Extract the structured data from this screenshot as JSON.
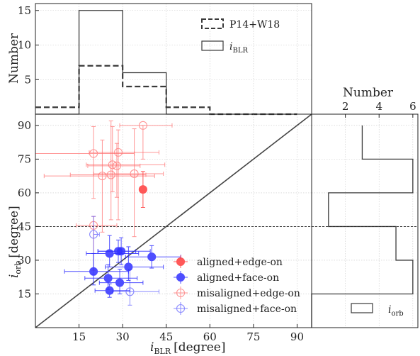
{
  "chart_data": [
    {
      "panel": "top",
      "type": "histogram",
      "ylabel": "Number",
      "yticks": [
        5,
        10,
        15
      ],
      "ylim": [
        0,
        16
      ],
      "xlim": [
        0,
        95
      ],
      "bin_edges": [
        0,
        15,
        30,
        45,
        60,
        75,
        90
      ],
      "grid": true,
      "legend_position": "top-right",
      "series": [
        {
          "name": "P14+W18",
          "style": "dashed",
          "color": "#3a3a3a",
          "counts": [
            1,
            7,
            4,
            1,
            0,
            0
          ]
        },
        {
          "name": "i_BLR",
          "style": "solid",
          "color": "#3a3a3a",
          "counts": [
            0,
            15,
            6,
            0,
            0,
            0
          ]
        }
      ],
      "legend_labels": {
        "p14": "P14+W18",
        "iblr_main": "i",
        "iblr_sub": "BLR"
      }
    },
    {
      "panel": "main",
      "type": "scatter",
      "xlabel_main": "i",
      "xlabel_sub": "BLR",
      "xlabel_unit": "[degree]",
      "ylabel_main": "i",
      "ylabel_sub": "orb",
      "ylabel_unit": "[degree]",
      "xticks": [
        15,
        30,
        45,
        60,
        75,
        90
      ],
      "yticks": [
        15,
        30,
        45,
        60,
        75,
        90
      ],
      "xlim": [
        0,
        95
      ],
      "ylim": [
        0,
        95
      ],
      "grid": true,
      "one_to_one_line": true,
      "horizontal_reference": 45,
      "legend_position": "lower-right",
      "series": [
        {
          "name": "aligned+edge-on",
          "color": "#ff3b3b",
          "filled": true,
          "points": [
            {
              "x": 37,
              "y": 61.5,
              "xerr": 0,
              "yerr": [
                8,
                8
              ]
            }
          ]
        },
        {
          "name": "aligned+face-on",
          "color": "#3030ff",
          "filled": true,
          "points": [
            {
              "x": 20,
              "y": 25,
              "xerr": [
                10,
                12
              ],
              "yerr": [
                6,
                8
              ]
            },
            {
              "x": 25,
              "y": 22,
              "xerr": [
                8,
                10
              ],
              "yerr": [
                5,
                6
              ]
            },
            {
              "x": 25.5,
              "y": 16.5,
              "xerr": [
                5,
                7
              ],
              "yerr": [
                3,
                3
              ]
            },
            {
              "x": 25.5,
              "y": 33,
              "xerr": [
                8,
                10
              ],
              "yerr": [
                6,
                8
              ]
            },
            {
              "x": 28.5,
              "y": 34,
              "xerr": [
                7,
                6
              ],
              "yerr": [
                5,
                5
              ]
            },
            {
              "x": 29.5,
              "y": 34,
              "xerr": [
                8,
                10
              ],
              "yerr": [
                6,
                6
              ]
            },
            {
              "x": 29,
              "y": 20,
              "xerr": [
                7,
                8
              ],
              "yerr": [
                5,
                6
              ]
            },
            {
              "x": 32,
              "y": 27,
              "xerr": [
                8,
                12
              ],
              "yerr": [
                6,
                9
              ]
            },
            {
              "x": 40,
              "y": 31.5,
              "xerr": [
                9,
                10
              ],
              "yerr": [
                5,
                5
              ]
            }
          ]
        },
        {
          "name": "misaligned+edge-on",
          "color": "#ff6a6a",
          "filled": false,
          "points": [
            {
              "x": 20,
              "y": 77.5,
              "xerr": [
                20,
                14
              ],
              "yerr": [
                20,
                12
              ]
            },
            {
              "x": 20,
              "y": 45.5,
              "xerr": [
                6,
                8
              ],
              "yerr": [
                20,
                4
              ]
            },
            {
              "x": 23,
              "y": 67.5,
              "xerr": [
                20,
                18
              ],
              "yerr": [
                25,
                16
              ]
            },
            {
              "x": 26,
              "y": 68,
              "xerr": [
                14,
                12
              ],
              "yerr": [
                20,
                24
              ]
            },
            {
              "x": 26.5,
              "y": 72.5,
              "xerr": [
                9,
                18
              ],
              "yerr": [
                12,
                17
              ]
            },
            {
              "x": 28,
              "y": 72,
              "xerr": [
                10,
                8
              ],
              "yerr": [
                14,
                10
              ]
            },
            {
              "x": 28.5,
              "y": 78,
              "xerr": [
                10,
                14
              ],
              "yerr": [
                30,
                10
              ]
            },
            {
              "x": 34,
              "y": 68.5,
              "xerr": [
                14,
                10
              ],
              "yerr": [
                28,
                20
              ]
            },
            {
              "x": 37,
              "y": 90,
              "xerr": [
                8,
                10
              ],
              "yerr": [
                15,
                0
              ]
            }
          ]
        },
        {
          "name": "misaligned+face-on",
          "color": "#5a5aff",
          "filled": false,
          "points": [
            {
              "x": 20,
              "y": 41.5,
              "xerr": [
                0,
                2
              ],
              "yerr": [
                18,
                8
              ]
            },
            {
              "x": 32.5,
              "y": 16,
              "xerr": [
                6,
                10
              ],
              "yerr": [
                6,
                10
              ]
            }
          ]
        }
      ]
    },
    {
      "panel": "right",
      "type": "histogram",
      "orientation": "horizontal",
      "xlabel": "Number",
      "xticks": [
        2,
        4,
        6
      ],
      "xlim": [
        0,
        6.3
      ],
      "ylim": [
        0,
        95
      ],
      "bin_edges": [
        0,
        15,
        30,
        45,
        60,
        75,
        90
      ],
      "grid": true,
      "legend_position": "lower-right",
      "series": [
        {
          "name": "i_orb",
          "style": "solid",
          "color": "#3a3a3a",
          "counts": [
            0,
            6,
            5,
            1,
            6,
            3
          ]
        }
      ],
      "legend_labels": {
        "iorb_main": "i",
        "iorb_sub": "orb"
      }
    }
  ]
}
